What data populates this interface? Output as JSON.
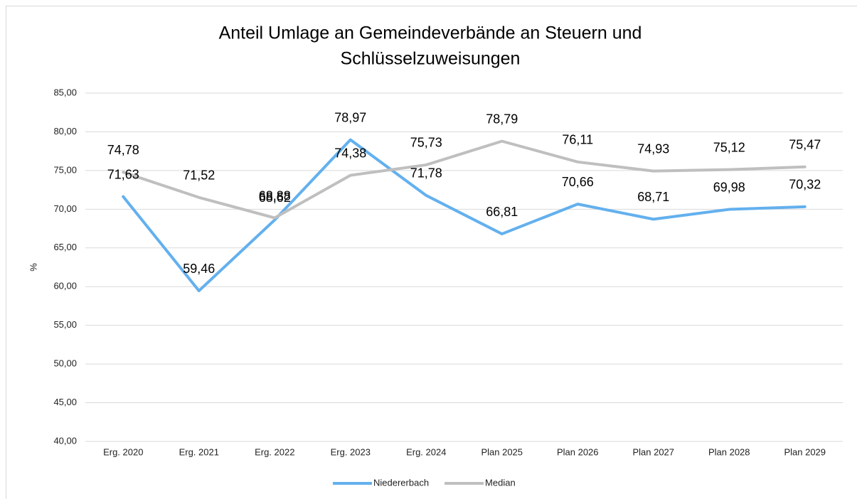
{
  "chart_data": {
    "type": "line",
    "title": [
      "Anteil Umlage an Gemeindeverbände an Steuern und",
      "Schlüsselzuweisungen"
    ],
    "ylabel": "%",
    "categories": [
      "Erg. 2020",
      "Erg. 2021",
      "Erg. 2022",
      "Erg. 2023",
      "Erg. 2024",
      "Plan 2025",
      "Plan 2026",
      "Plan 2027",
      "Plan 2028",
      "Plan 2029"
    ],
    "series": [
      {
        "name": "Niedererbach",
        "color": "#63b0ee",
        "values": [
          71.63,
          59.46,
          68.62,
          78.97,
          71.78,
          66.81,
          70.66,
          68.71,
          69.98,
          70.32
        ],
        "value_labels": [
          "71,63",
          "59,46",
          "68,62",
          "78,97",
          "71,78",
          "66,81",
          "70,66",
          "68,71",
          "69,98",
          "70,32"
        ]
      },
      {
        "name": "Median",
        "color": "#bfbfbf",
        "values": [
          74.78,
          71.52,
          68.88,
          74.38,
          75.73,
          78.79,
          76.11,
          74.93,
          75.12,
          75.47
        ],
        "value_labels": [
          "74,78",
          "71,52",
          "68,88",
          "74,38",
          "75,73",
          "78,79",
          "76,11",
          "74,93",
          "75,12",
          "75,47"
        ]
      }
    ],
    "ylim": [
      40,
      85
    ],
    "yticks": [
      {
        "value": 40,
        "label": "40,00"
      },
      {
        "value": 45,
        "label": "45,00"
      },
      {
        "value": 50,
        "label": "50,00"
      },
      {
        "value": 55,
        "label": "55,00"
      },
      {
        "value": 60,
        "label": "60,00"
      },
      {
        "value": 65,
        "label": "65,00"
      },
      {
        "value": 70,
        "label": "70,00"
      },
      {
        "value": 75,
        "label": "75,00"
      },
      {
        "value": 80,
        "label": "80,00"
      },
      {
        "value": 85,
        "label": "85,00"
      }
    ],
    "grid": true,
    "legend": "bottom"
  }
}
